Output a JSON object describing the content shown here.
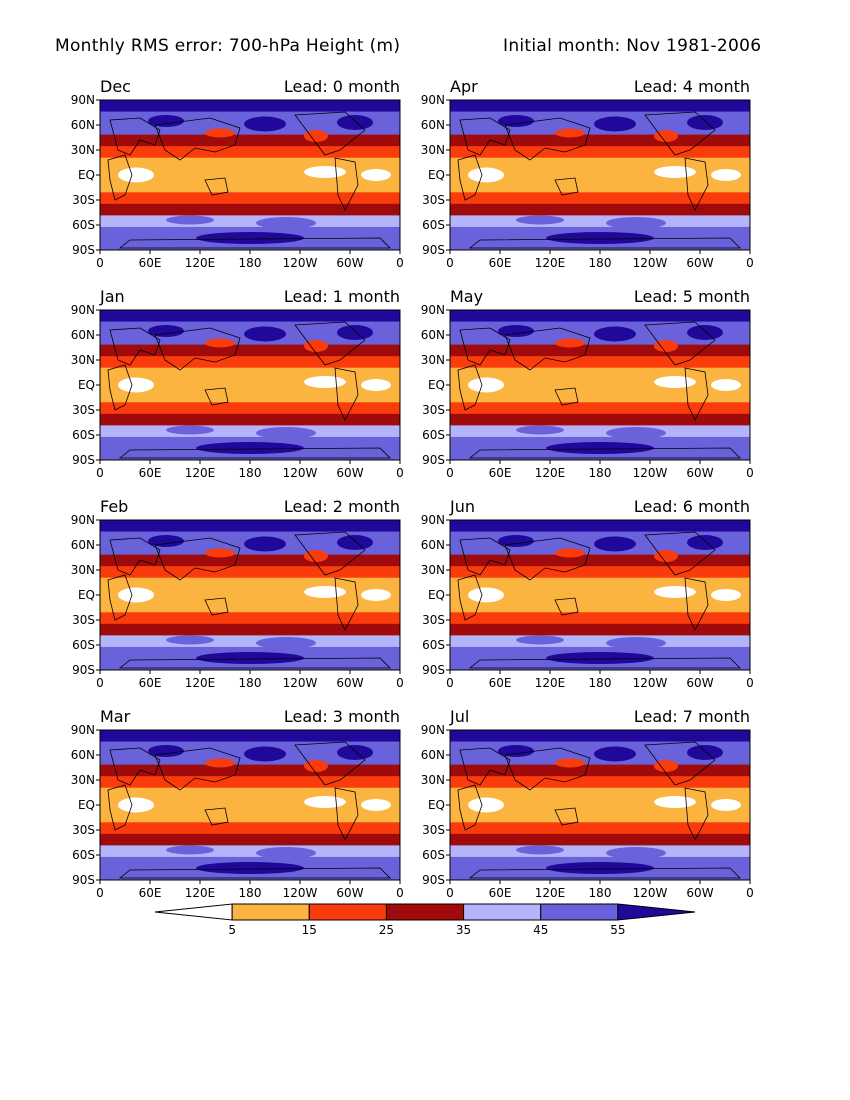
{
  "title": {
    "left": "Monthly RMS error: 700-hPa Height (m)",
    "right": "Initial month: Nov 1981-2006"
  },
  "colors": {
    "below_5": "#ffffff",
    "5_15": "#fcb440",
    "15_25": "#fa3c0c",
    "25_35": "#a00a0a",
    "35_45": "#b4b4fa",
    "45_55": "#6a62da",
    "above_55": "#20089a",
    "land_outline": "#000000"
  },
  "chart_data": {
    "type": "heatmap",
    "panels": [
      {
        "month": "Dec",
        "lead_label": "Lead: 0 month",
        "lead": 0
      },
      {
        "month": "Jan",
        "lead_label": "Lead: 1 month",
        "lead": 1
      },
      {
        "month": "Feb",
        "lead_label": "Lead: 2 month",
        "lead": 2
      },
      {
        "month": "Mar",
        "lead_label": "Lead: 3 month",
        "lead": 3
      },
      {
        "month": "Apr",
        "lead_label": "Lead: 4 month",
        "lead": 4
      },
      {
        "month": "May",
        "lead_label": "Lead: 5 month",
        "lead": 5
      },
      {
        "month": "Jun",
        "lead_label": "Lead: 6 month",
        "lead": 6
      },
      {
        "month": "Jul",
        "lead_label": "Lead: 7 month",
        "lead": 7
      }
    ],
    "x_ticks": [
      "0",
      "60E",
      "120E",
      "180",
      "120W",
      "60W",
      "0"
    ],
    "y_ticks": [
      "90N",
      "60N",
      "30N",
      "EQ",
      "30S",
      "60S",
      "90S"
    ],
    "colorbar": {
      "levels": [
        5,
        15,
        25,
        35,
        45,
        55
      ],
      "labels": [
        "5",
        "15",
        "25",
        "35",
        "45",
        "55"
      ],
      "bins": [
        {
          "range": "<5",
          "color": "#ffffff"
        },
        {
          "range": "5-15",
          "color": "#fcb440"
        },
        {
          "range": "15-25",
          "color": "#fa3c0c"
        },
        {
          "range": "25-35",
          "color": "#a00a0a"
        },
        {
          "range": "35-45",
          "color": "#b4b4fa"
        },
        {
          "range": "45-55",
          "color": "#6a62da"
        },
        {
          "range": ">55",
          "color": "#20089a"
        }
      ]
    },
    "latitude_profile": [
      {
        "lat": "90N",
        "value": 58
      },
      {
        "lat": "75N",
        "value": 50
      },
      {
        "lat": "60N",
        "value": 45
      },
      {
        "lat": "45N",
        "value": 28
      },
      {
        "lat": "35N",
        "value": 20
      },
      {
        "lat": "20N",
        "value": 10
      },
      {
        "lat": "EQ",
        "value": 6
      },
      {
        "lat": "20S",
        "value": 10
      },
      {
        "lat": "35S",
        "value": 20
      },
      {
        "lat": "45S",
        "value": 28
      },
      {
        "lat": "60S",
        "value": 40
      },
      {
        "lat": "75S",
        "value": 45
      },
      {
        "lat": "90S",
        "value": 48
      }
    ]
  }
}
